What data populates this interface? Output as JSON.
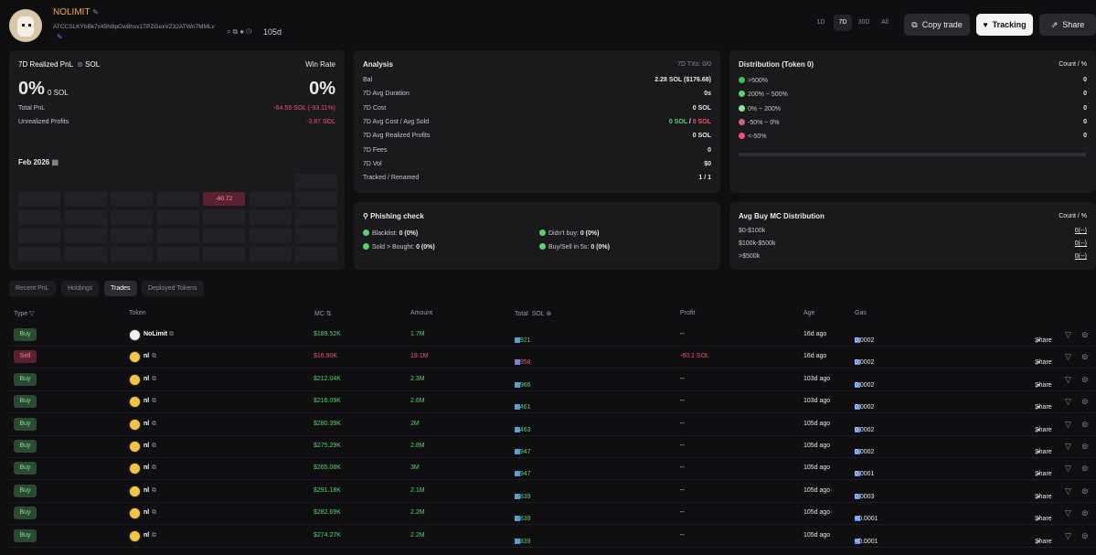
{
  "header": {
    "name": "NOLIMIT",
    "address": "ATCCSLKYbBk7x45N8pGw8hsv1TPZGexVZ32ATWn7MMLv",
    "age": "105d",
    "ranges": [
      "1D",
      "7D",
      "30D",
      "All"
    ],
    "active_range": "7D",
    "copy_trade": "Copy trade",
    "tracking": "Tracking",
    "share": "Share"
  },
  "pnl": {
    "title": "7D Realized PnL",
    "unit": "SOL",
    "win_rate_label": "Win Rate",
    "pnl_pct": "0%",
    "pnl_sol": "0 SOL",
    "win_rate": "0%",
    "total_pnl_label": "Total PnL",
    "total_pnl": "-64.59 SOL (-93.11%)",
    "unrealized_label": "Unrealized Profits",
    "unrealized": "-3.87 SOL",
    "month": "Feb 2026",
    "calendar_value": "-60.72"
  },
  "analysis": {
    "title": "Analysis",
    "txs": "7D TXs: 0/0",
    "rows": [
      {
        "label": "Bal",
        "value": "2.28 SOL ($176.68)"
      },
      {
        "label": "7D Avg Duration",
        "value": "0s"
      },
      {
        "label": "7D Cost",
        "value": "0 SOL"
      },
      {
        "label": "7D Avg Cost / Avg Sold",
        "value_a": "0 SOL",
        "sep": " / ",
        "value_b": "0 SOL"
      },
      {
        "label": "7D Avg Realized Profits",
        "value": "0 SOL"
      },
      {
        "label": "7D Fees",
        "value": "0"
      },
      {
        "label": "7D Vol",
        "value": "$0"
      },
      {
        "label": "Tracked / Renamed",
        "value": "1 / 1"
      }
    ]
  },
  "distribution": {
    "title": "Distribution (Token 0)",
    "header_right": "Count / %",
    "rows": [
      {
        "label": ">500%",
        "value": "0",
        "color": "#3fbf5f"
      },
      {
        "label": "200% ~ 500%",
        "value": "0",
        "color": "#55d36e"
      },
      {
        "label": "0% ~ 200%",
        "value": "0",
        "color": "#8fe39f"
      },
      {
        "label": "-50% ~ 0%",
        "value": "0",
        "color": "#c66a7a"
      },
      {
        "label": "<-50%",
        "value": "0",
        "color": "#f0506e"
      }
    ]
  },
  "phishing": {
    "title": "Phishing check",
    "items": [
      {
        "label": "Blacklist:",
        "value": "0 (0%)"
      },
      {
        "label": "Didn't buy:",
        "value": "0 (0%)"
      },
      {
        "label": "Sold > Bought:",
        "value": "0 (0%)"
      },
      {
        "label": "Buy/Sell in 5s:",
        "value": "0 (0%)"
      }
    ]
  },
  "avgbuy": {
    "title": "Avg Buy MC Distribution",
    "header_right": "Count / %",
    "rows": [
      {
        "label": "$0-$100k",
        "value": "0(--)"
      },
      {
        "label": "$100k-$500k",
        "value": "0(--)"
      },
      {
        "label": ">$500k",
        "value": "0(--)"
      }
    ]
  },
  "tabs": [
    "Recent PnL",
    "Holdings",
    "Trades",
    "Deployed Tokens"
  ],
  "active_tab": "Trades",
  "table": {
    "headers": {
      "type": "Type",
      "token": "Token",
      "mc": "MC",
      "amount": "Amount",
      "total": "Total",
      "total_unit": "SOL",
      "profit": "Profit",
      "age": "Age",
      "gas": "Gas"
    },
    "share_label": "Share",
    "rows": [
      {
        "type": "Buy",
        "token": "NoLimit",
        "mc": "$189.52K",
        "amount": "1.7M",
        "total": "3.921",
        "profit": "--",
        "age": "16d ago",
        "gas": "0.0002"
      },
      {
        "type": "Sell",
        "token": "nl",
        "mc": "$16.90K",
        "amount": "19.1M",
        "total": "3.958",
        "profit": "-60.1 SOL",
        "age": "16d ago",
        "gas": "0.0002"
      },
      {
        "type": "Buy",
        "token": "nl",
        "mc": "$212.04K",
        "amount": "2.3M",
        "total": "2.966",
        "profit": "--",
        "age": "103d ago",
        "gas": "0.0002"
      },
      {
        "type": "Buy",
        "token": "nl",
        "mc": "$216.09K",
        "amount": "2.6M",
        "total": "3.461",
        "profit": "--",
        "age": "103d ago",
        "gas": "0.0002"
      },
      {
        "type": "Buy",
        "token": "nl",
        "mc": "$280.39K",
        "amount": "2M",
        "total": "3.463",
        "profit": "--",
        "age": "105d ago",
        "gas": "0.0002"
      },
      {
        "type": "Buy",
        "token": "nl",
        "mc": "$275.29K",
        "amount": "2.8M",
        "total": "4.947",
        "profit": "--",
        "age": "105d ago",
        "gas": "0.0002"
      },
      {
        "type": "Buy",
        "token": "nl",
        "mc": "$265.08K",
        "amount": "3M",
        "total": "4.947",
        "profit": "--",
        "age": "105d ago",
        "gas": "0.0001"
      },
      {
        "type": "Buy",
        "token": "nl",
        "mc": "$291.18K",
        "amount": "2.1M",
        "total": "3.839",
        "profit": "--",
        "age": "105d ago",
        "gas": "0.0003"
      },
      {
        "type": "Buy",
        "token": "nl",
        "mc": "$282.69K",
        "amount": "2.2M",
        "total": "3.839",
        "profit": "--",
        "age": "105d ago",
        "gas": "<0.0001"
      },
      {
        "type": "Buy",
        "token": "nl",
        "mc": "$274.27K",
        "amount": "2.2M",
        "total": "3.839",
        "profit": "--",
        "age": "105d ago",
        "gas": "<0.0001"
      }
    ]
  }
}
